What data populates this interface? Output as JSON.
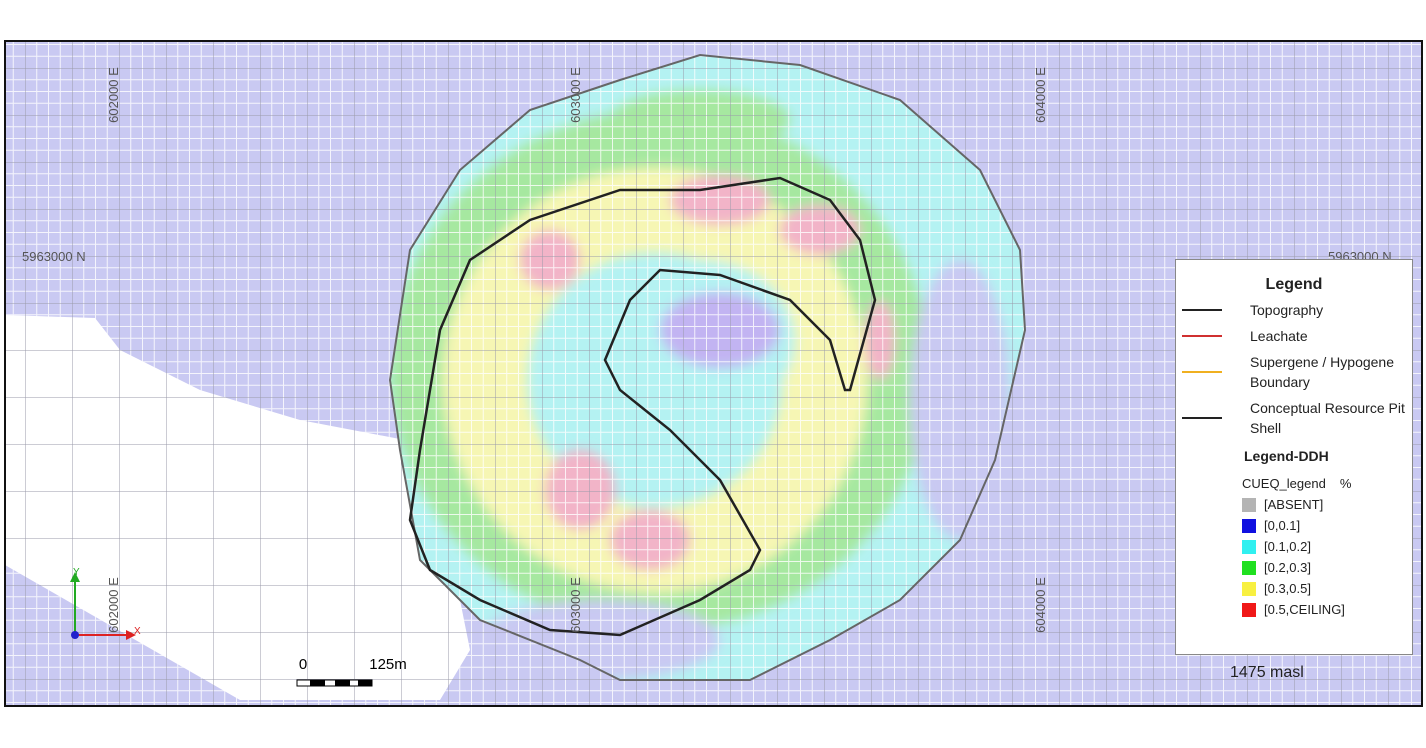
{
  "grid_labels": {
    "eastings": [
      "602000 E",
      "603000 E",
      "604000 E"
    ],
    "northings": [
      "5963000 N"
    ]
  },
  "scale_bar": {
    "start": "0",
    "end": "125m"
  },
  "axes": {
    "y": "Y",
    "x": "X"
  },
  "legend": {
    "title": "Legend",
    "lines": [
      {
        "label": "Topography",
        "color": "#222222"
      },
      {
        "label": "Leachate",
        "color": "#d03030"
      },
      {
        "label": "Supergene / Hypogene Boundary",
        "color": "#f0b020"
      },
      {
        "label": "Conceptual Resource Pit Shell",
        "color": "#222222"
      }
    ],
    "ddh_title": "Legend-DDH",
    "ddh_field": "CUEQ_legend",
    "ddh_unit": "%",
    "classes": [
      {
        "label": "[ABSENT]",
        "color": "#b4b4b4"
      },
      {
        "label": "[0,0.1]",
        "color": "#1010e0"
      },
      {
        "label": "[0.1,0.2]",
        "color": "#30f0f0"
      },
      {
        "label": "[0.2,0.3]",
        "color": "#20e020"
      },
      {
        "label": "[0.3,0.5]",
        "color": "#f8f040"
      },
      {
        "label": "[0.5,CEILING]",
        "color": "#f01818"
      }
    ]
  },
  "elevation": "1475 masl"
}
